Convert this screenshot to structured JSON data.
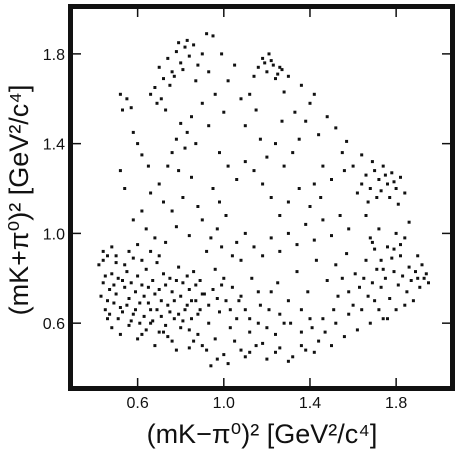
{
  "chart_data": {
    "type": "scatter",
    "title": "",
    "xlabel": "(mK−π⁰)² [GeV²/c⁴]",
    "ylabel": "(mK+π⁰)² [GeV²/c⁴]",
    "xlim": [
      0.3,
      2.05
    ],
    "ylim": [
      0.32,
      2.0
    ],
    "x_ticks": [
      "0.6",
      "1.0",
      "1.4",
      "1.8"
    ],
    "y_ticks": [
      "0.6",
      "1.0",
      "1.4",
      "1.8"
    ],
    "x_tick_values": [
      0.6,
      1.0,
      1.4,
      1.8
    ],
    "y_tick_values": [
      0.6,
      1.0,
      1.4,
      1.8
    ],
    "grid": false,
    "legend": "none",
    "marker_color": "#111111",
    "points": [
      [
        0.42,
        0.86
      ],
      [
        0.44,
        0.78
      ],
      [
        0.45,
        0.81
      ],
      [
        0.46,
        0.7
      ],
      [
        0.47,
        0.75
      ],
      [
        0.48,
        0.82
      ],
      [
        0.49,
        0.77
      ],
      [
        0.5,
        0.73
      ],
      [
        0.51,
        0.8
      ],
      [
        0.52,
        0.67
      ],
      [
        0.53,
        0.79
      ],
      [
        0.54,
        0.76
      ],
      [
        0.55,
        0.83
      ],
      [
        0.56,
        0.71
      ],
      [
        0.57,
        0.78
      ],
      [
        0.58,
        0.64
      ],
      [
        0.59,
        0.74
      ],
      [
        0.6,
        0.81
      ],
      [
        0.61,
        0.69
      ],
      [
        0.62,
        0.77
      ],
      [
        0.63,
        0.72
      ],
      [
        0.64,
        0.84
      ],
      [
        0.65,
        0.76
      ],
      [
        0.66,
        0.66
      ],
      [
        0.67,
        0.79
      ],
      [
        0.68,
        0.73
      ],
      [
        0.69,
        0.87
      ],
      [
        0.7,
        0.75
      ],
      [
        0.71,
        0.7
      ],
      [
        0.72,
        0.82
      ],
      [
        0.73,
        0.77
      ],
      [
        0.74,
        0.68
      ],
      [
        0.75,
        0.8
      ],
      [
        0.76,
        0.74
      ],
      [
        0.77,
        0.62
      ],
      [
        0.78,
        0.79
      ],
      [
        0.79,
        0.85
      ],
      [
        0.8,
        0.72
      ],
      [
        0.81,
        0.78
      ],
      [
        0.82,
        0.66
      ],
      [
        0.83,
        0.81
      ],
      [
        0.84,
        0.75
      ],
      [
        0.85,
        0.7
      ],
      [
        0.86,
        0.83
      ],
      [
        0.87,
        0.77
      ],
      [
        0.88,
        0.64
      ],
      [
        0.89,
        0.79
      ],
      [
        0.9,
        0.73
      ],
      [
        0.46,
        0.62
      ],
      [
        0.48,
        0.58
      ],
      [
        0.52,
        0.55
      ],
      [
        0.56,
        0.59
      ],
      [
        0.6,
        0.53
      ],
      [
        0.64,
        0.57
      ],
      [
        0.68,
        0.5
      ],
      [
        0.72,
        0.56
      ],
      [
        0.76,
        0.52
      ],
      [
        0.8,
        0.58
      ],
      [
        0.84,
        0.49
      ],
      [
        0.88,
        0.55
      ],
      [
        0.92,
        0.48
      ],
      [
        0.96,
        0.53
      ],
      [
        1.0,
        0.46
      ],
      [
        1.05,
        0.52
      ],
      [
        1.1,
        0.45
      ],
      [
        1.15,
        0.5
      ],
      [
        1.2,
        0.44
      ],
      [
        1.26,
        0.49
      ],
      [
        1.32,
        0.45
      ],
      [
        1.38,
        0.48
      ],
      [
        1.44,
        0.52
      ],
      [
        1.5,
        0.5
      ],
      [
        1.56,
        0.54
      ],
      [
        1.62,
        0.57
      ],
      [
        1.68,
        0.6
      ],
      [
        1.74,
        0.62
      ],
      [
        1.8,
        0.66
      ],
      [
        0.94,
        0.41
      ],
      [
        0.97,
        0.44
      ],
      [
        1.02,
        0.42
      ],
      [
        1.08,
        0.48
      ],
      [
        1.12,
        0.47
      ],
      [
        1.18,
        0.51
      ],
      [
        1.24,
        0.47
      ],
      [
        1.3,
        0.43
      ],
      [
        1.36,
        0.5
      ],
      [
        1.42,
        0.47
      ],
      [
        0.93,
        0.6
      ],
      [
        0.98,
        0.65
      ],
      [
        1.03,
        0.58
      ],
      [
        1.07,
        0.7
      ],
      [
        1.12,
        0.62
      ],
      [
        1.16,
        0.74
      ],
      [
        1.21,
        0.66
      ],
      [
        1.25,
        0.78
      ],
      [
        1.3,
        0.7
      ],
      [
        1.34,
        0.83
      ],
      [
        1.39,
        0.74
      ],
      [
        1.43,
        0.88
      ],
      [
        1.48,
        0.79
      ],
      [
        1.52,
        0.86
      ],
      [
        1.57,
        0.91
      ],
      [
        1.61,
        0.82
      ],
      [
        1.66,
        0.88
      ],
      [
        1.7,
        0.93
      ],
      [
        1.74,
        0.84
      ],
      [
        1.78,
        0.89
      ],
      [
        1.82,
        0.95
      ],
      [
        1.86,
        0.85
      ],
      [
        1.9,
        0.8
      ],
      [
        1.63,
        0.76
      ],
      [
        1.65,
        0.8
      ],
      [
        1.67,
        0.72
      ],
      [
        1.69,
        0.78
      ],
      [
        1.71,
        0.84
      ],
      [
        1.73,
        0.76
      ],
      [
        1.75,
        0.8
      ],
      [
        1.77,
        0.71
      ],
      [
        1.79,
        0.83
      ],
      [
        1.81,
        0.77
      ],
      [
        1.83,
        0.81
      ],
      [
        1.85,
        0.74
      ],
      [
        1.87,
        0.79
      ],
      [
        1.89,
        0.83
      ],
      [
        1.91,
        0.76
      ],
      [
        1.93,
        0.8
      ],
      [
        1.72,
        0.66
      ],
      [
        1.76,
        0.62
      ],
      [
        1.84,
        0.68
      ],
      [
        1.88,
        0.7
      ],
      [
        1.95,
        0.78
      ],
      [
        1.6,
        0.68
      ],
      [
        1.58,
        0.74
      ],
      [
        1.55,
        0.8
      ],
      [
        1.53,
        0.72
      ],
      [
        1.68,
        0.98
      ],
      [
        1.72,
        1.02
      ],
      [
        1.76,
        0.94
      ],
      [
        1.8,
        1.0
      ],
      [
        1.66,
        1.08
      ],
      [
        1.62,
        1.18
      ],
      [
        1.64,
        1.22
      ],
      [
        1.66,
        1.26
      ],
      [
        1.68,
        1.2
      ],
      [
        1.7,
        1.28
      ],
      [
        1.72,
        1.24
      ],
      [
        1.74,
        1.3
      ],
      [
        1.76,
        1.22
      ],
      [
        1.78,
        1.27
      ],
      [
        1.8,
        1.2
      ],
      [
        1.82,
        1.25
      ],
      [
        1.84,
        1.18
      ],
      [
        1.69,
        1.32
      ],
      [
        1.73,
        1.19
      ],
      [
        1.77,
        1.16
      ],
      [
        1.81,
        1.13
      ],
      [
        1.71,
        1.16
      ],
      [
        1.79,
        1.23
      ],
      [
        1.67,
        1.14
      ],
      [
        1.75,
        1.26
      ],
      [
        1.55,
        1.36
      ],
      [
        1.57,
        1.41
      ],
      [
        1.52,
        1.47
      ],
      [
        1.48,
        1.52
      ],
      [
        1.44,
        1.44
      ],
      [
        1.4,
        1.58
      ],
      [
        1.38,
        1.5
      ],
      [
        1.42,
        1.62
      ],
      [
        1.36,
        1.66
      ],
      [
        1.33,
        1.54
      ],
      [
        1.3,
        1.7
      ],
      [
        1.28,
        1.63
      ],
      [
        1.26,
        1.74
      ],
      [
        1.24,
        1.69
      ],
      [
        1.22,
        1.77
      ],
      [
        1.2,
        1.72
      ],
      [
        1.18,
        1.78
      ],
      [
        1.16,
        1.74
      ],
      [
        1.14,
        1.7
      ],
      [
        1.21,
        1.8
      ],
      [
        1.23,
        1.75
      ],
      [
        1.25,
        1.71
      ],
      [
        1.27,
        1.73
      ],
      [
        1.19,
        1.76
      ],
      [
        1.12,
        1.62
      ],
      [
        1.15,
        1.55
      ],
      [
        1.1,
        1.48
      ],
      [
        1.17,
        1.42
      ],
      [
        1.2,
        1.34
      ],
      [
        1.24,
        1.4
      ],
      [
        1.28,
        1.3
      ],
      [
        1.32,
        1.36
      ],
      [
        1.27,
        1.5
      ],
      [
        1.35,
        1.42
      ],
      [
        1.05,
        1.75
      ],
      [
        1.02,
        1.68
      ],
      [
        0.99,
        1.8
      ],
      [
        0.95,
        1.88
      ],
      [
        0.92,
        1.89
      ],
      [
        0.96,
        1.62
      ],
      [
        0.93,
        1.72
      ],
      [
        0.9,
        1.8
      ],
      [
        0.88,
        1.75
      ],
      [
        0.86,
        1.84
      ],
      [
        0.84,
        1.79
      ],
      [
        0.82,
        1.83
      ],
      [
        0.8,
        1.76
      ],
      [
        0.78,
        1.81
      ],
      [
        0.76,
        1.72
      ],
      [
        0.74,
        1.78
      ],
      [
        0.72,
        1.69
      ],
      [
        0.7,
        1.74
      ],
      [
        0.68,
        1.65
      ],
      [
        0.66,
        1.62
      ],
      [
        0.83,
        1.86
      ],
      [
        0.79,
        1.85
      ],
      [
        0.75,
        1.66
      ],
      [
        0.71,
        1.6
      ],
      [
        0.77,
        1.7
      ],
      [
        0.81,
        1.73
      ],
      [
        0.87,
        1.68
      ],
      [
        0.73,
        1.55
      ],
      [
        0.69,
        1.58
      ],
      [
        0.85,
        1.52
      ],
      [
        0.8,
        1.49
      ],
      [
        0.83,
        1.45
      ],
      [
        0.78,
        1.42
      ],
      [
        0.76,
        1.36
      ],
      [
        0.82,
        1.38
      ],
      [
        0.87,
        1.4
      ],
      [
        0.74,
        1.3
      ],
      [
        0.79,
        1.28
      ],
      [
        0.85,
        1.25
      ],
      [
        0.7,
        1.22
      ],
      [
        0.66,
        1.18
      ],
      [
        0.72,
        1.14
      ],
      [
        0.76,
        1.1
      ],
      [
        0.81,
        1.16
      ],
      [
        0.88,
        1.12
      ],
      [
        0.62,
        1.1
      ],
      [
        0.58,
        1.06
      ],
      [
        0.64,
        1.02
      ],
      [
        0.68,
        0.98
      ],
      [
        0.73,
        0.96
      ],
      [
        0.78,
        1.03
      ],
      [
        0.84,
        0.99
      ],
      [
        0.9,
        1.06
      ],
      [
        0.6,
        0.95
      ],
      [
        0.56,
        0.92
      ],
      [
        0.52,
        1.28
      ],
      [
        0.53,
        1.55
      ],
      [
        0.55,
        1.6
      ],
      [
        0.57,
        1.56
      ],
      [
        0.52,
        1.62
      ],
      [
        0.58,
        1.45
      ],
      [
        0.6,
        1.4
      ],
      [
        0.62,
        1.35
      ],
      [
        0.65,
        1.3
      ],
      [
        0.54,
        1.2
      ],
      [
        0.95,
        1.2
      ],
      [
        0.98,
        1.14
      ],
      [
        1.01,
        1.08
      ],
      [
        0.97,
        1.02
      ],
      [
        0.94,
        0.98
      ],
      [
        0.99,
        0.94
      ],
      [
        1.04,
        0.9
      ],
      [
        1.08,
        0.88
      ],
      [
        1.06,
        0.96
      ],
      [
        1.1,
        1.0
      ],
      [
        1.14,
        0.94
      ],
      [
        1.18,
        0.9
      ],
      [
        1.22,
        0.98
      ],
      [
        1.26,
        0.92
      ],
      [
        1.3,
        1.0
      ],
      [
        1.34,
        0.95
      ],
      [
        1.38,
        1.04
      ],
      [
        1.42,
        0.97
      ],
      [
        1.46,
        1.06
      ],
      [
        1.5,
        0.99
      ],
      [
        1.54,
        1.08
      ],
      [
        1.58,
        1.02
      ],
      [
        1.45,
        1.16
      ],
      [
        1.4,
        1.12
      ],
      [
        1.35,
        1.2
      ],
      [
        1.3,
        1.14
      ],
      [
        1.26,
        1.08
      ],
      [
        1.22,
        1.16
      ],
      [
        1.18,
        1.22
      ],
      [
        1.14,
        1.28
      ],
      [
        1.1,
        1.32
      ],
      [
        1.06,
        1.24
      ],
      [
        1.02,
        1.3
      ],
      [
        0.98,
        1.36
      ],
      [
        1.5,
        1.24
      ],
      [
        1.46,
        1.3
      ],
      [
        1.42,
        1.22
      ],
      [
        0.92,
        0.92
      ],
      [
        0.96,
        0.84
      ],
      [
        1.0,
        0.8
      ],
      [
        1.04,
        0.76
      ],
      [
        1.08,
        0.72
      ],
      [
        1.13,
        0.8
      ],
      [
        1.17,
        0.68
      ],
      [
        1.22,
        0.74
      ],
      [
        1.26,
        0.64
      ],
      [
        1.31,
        0.6
      ],
      [
        1.36,
        0.66
      ],
      [
        1.41,
        0.58
      ],
      [
        1.46,
        0.62
      ],
      [
        1.51,
        0.66
      ],
      [
        0.5,
        0.9
      ],
      [
        0.54,
        0.86
      ],
      [
        0.58,
        0.89
      ],
      [
        0.62,
        0.88
      ],
      [
        0.66,
        0.92
      ],
      [
        0.7,
        0.9
      ],
      [
        0.48,
        0.94
      ],
      [
        0.44,
        0.88
      ],
      [
        0.43,
        0.72
      ],
      [
        0.45,
        0.66
      ],
      [
        0.47,
        0.64
      ],
      [
        0.49,
        0.69
      ],
      [
        0.51,
        0.62
      ],
      [
        0.53,
        0.65
      ],
      [
        0.55,
        0.68
      ],
      [
        0.57,
        0.61
      ],
      [
        0.59,
        0.66
      ],
      [
        0.61,
        0.6
      ],
      [
        0.63,
        0.63
      ],
      [
        0.65,
        0.69
      ],
      [
        0.67,
        0.61
      ],
      [
        0.69,
        0.66
      ],
      [
        0.71,
        0.63
      ],
      [
        0.73,
        0.59
      ],
      [
        0.75,
        0.65
      ],
      [
        0.77,
        0.7
      ],
      [
        0.79,
        0.64
      ],
      [
        0.81,
        0.61
      ],
      [
        0.83,
        0.68
      ],
      [
        0.85,
        0.62
      ],
      [
        0.87,
        0.7
      ],
      [
        0.89,
        0.66
      ],
      [
        0.91,
        0.73
      ],
      [
        0.93,
        0.68
      ],
      [
        0.95,
        0.75
      ],
      [
        0.97,
        0.71
      ],
      [
        0.99,
        0.77
      ],
      [
        1.01,
        0.7
      ],
      [
        1.03,
        0.66
      ],
      [
        0.44,
        0.92
      ],
      [
        0.46,
        0.9
      ],
      [
        0.5,
        0.87
      ],
      [
        1.6,
        1.3
      ],
      [
        1.64,
        1.35
      ],
      [
        1.56,
        1.28
      ],
      [
        1.86,
        1.05
      ],
      [
        1.84,
        0.98
      ],
      [
        1.82,
        0.9
      ],
      [
        1.79,
        0.93
      ],
      [
        1.73,
        0.88
      ],
      [
        1.69,
        0.96
      ],
      [
        1.92,
        0.86
      ],
      [
        1.94,
        0.82
      ],
      [
        1.9,
        0.9
      ],
      [
        0.93,
        1.48
      ],
      [
        0.9,
        1.58
      ],
      [
        1.0,
        1.54
      ],
      [
        1.08,
        1.6
      ],
      [
        0.84,
        0.57
      ],
      [
        0.86,
        0.52
      ],
      [
        0.9,
        0.5
      ],
      [
        0.78,
        0.48
      ],
      [
        0.74,
        0.54
      ],
      [
        0.7,
        0.56
      ],
      [
        0.66,
        0.6
      ],
      [
        0.62,
        0.55
      ],
      [
        1.36,
        0.56
      ],
      [
        1.4,
        0.62
      ],
      [
        1.47,
        0.56
      ],
      [
        1.52,
        0.6
      ],
      [
        1.58,
        0.64
      ],
      [
        1.64,
        0.66
      ],
      [
        1.7,
        0.7
      ],
      [
        1.12,
        0.56
      ],
      [
        1.16,
        0.6
      ],
      [
        1.2,
        0.58
      ],
      [
        1.24,
        0.55
      ],
      [
        1.28,
        0.6
      ],
      [
        1.06,
        0.62
      ],
      [
        1.1,
        0.66
      ]
    ]
  }
}
